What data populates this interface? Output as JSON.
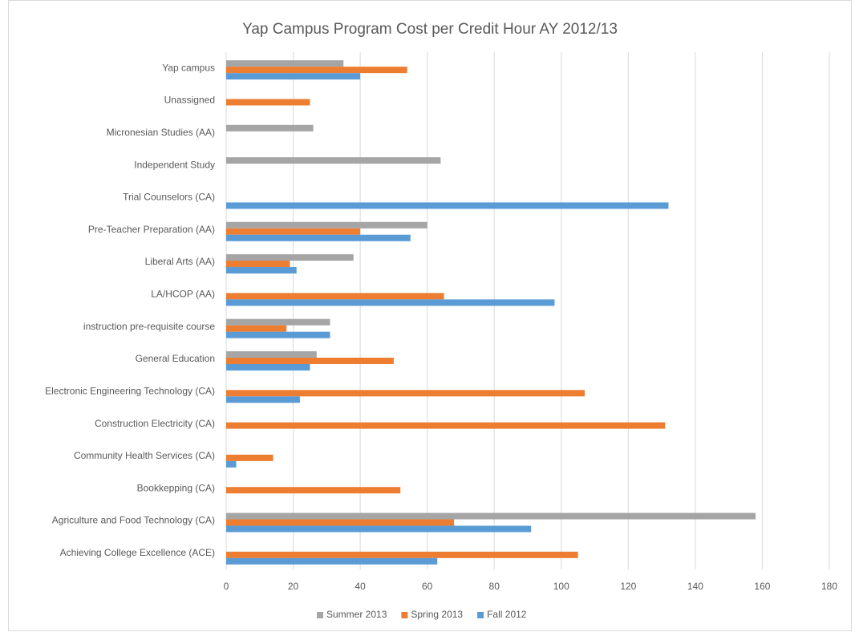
{
  "chart_data": {
    "type": "bar",
    "orientation": "horizontal",
    "title": "Yap Campus Program Cost per Credit Hour AY 2012/13",
    "categories": [
      "Yap campus",
      "Unassigned",
      "Micronesian Studies (AA)",
      "Independent Study",
      "Trial Counselors (CA)",
      "Pre-Teacher Preparation (AA)",
      "Liberal Arts (AA)",
      "LA/HCOP (AA)",
      "instruction pre-requisite course",
      "General Education",
      "Electronic Engineering Technology (CA)",
      "Construction Electricity (CA)",
      "Community Health Services (CA)",
      "Bookkepping (CA)",
      "Agriculture and Food Technology (CA)",
      "Achieving College Excellence (ACE)"
    ],
    "series": [
      {
        "name": "Summer 2013",
        "color": "#a5a5a5",
        "values": [
          35,
          null,
          26,
          64,
          null,
          60,
          38,
          null,
          31,
          27,
          null,
          null,
          null,
          null,
          158,
          null
        ]
      },
      {
        "name": "Spring 2013",
        "color": "#ed7d31",
        "values": [
          54,
          25,
          null,
          null,
          null,
          40,
          19,
          65,
          18,
          50,
          107,
          131,
          14,
          52,
          68,
          105
        ]
      },
      {
        "name": "Fall 2012",
        "color": "#5b9bd5",
        "values": [
          40,
          null,
          null,
          null,
          132,
          55,
          21,
          98,
          31,
          25,
          22,
          null,
          3,
          null,
          91,
          63
        ]
      }
    ],
    "xlim": [
      0,
      180
    ],
    "xticks": [
      0,
      20,
      40,
      60,
      80,
      100,
      120,
      140,
      160,
      180
    ],
    "grid": true,
    "legend": "bottom"
  }
}
